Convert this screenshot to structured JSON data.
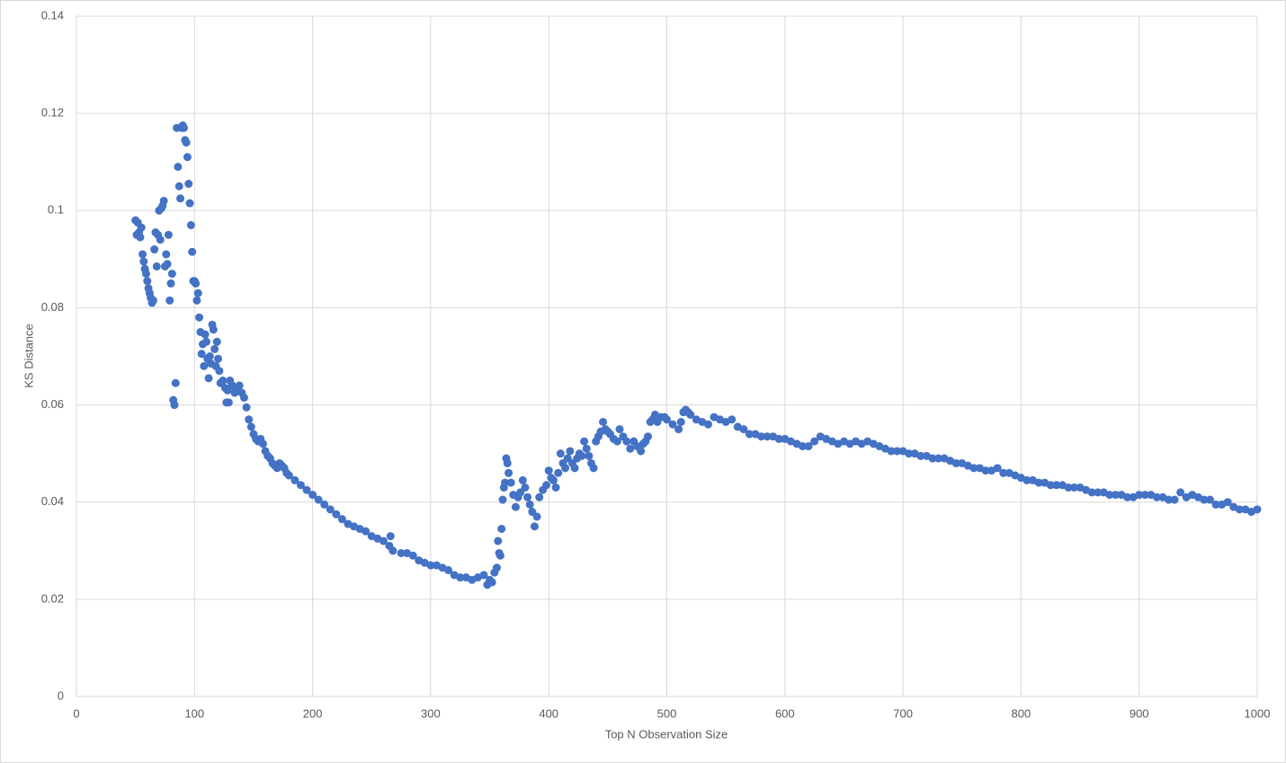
{
  "chart_data": {
    "type": "scatter",
    "x_label": "Top N Observation Size",
    "y_label": "KS Distance",
    "xlim": [
      0,
      1000
    ],
    "ylim": [
      0,
      0.14
    ],
    "xticks": [
      0,
      100,
      200,
      300,
      400,
      500,
      600,
      700,
      800,
      900,
      1000
    ],
    "yticks": [
      0,
      0.02,
      0.04,
      0.06,
      0.08,
      0.1,
      0.12,
      0.14
    ],
    "grid": true,
    "color": "#4472c4",
    "x": [
      50,
      51,
      52,
      53,
      54,
      55,
      56,
      57,
      58,
      59,
      60,
      61,
      62,
      63,
      64,
      65,
      66,
      67,
      68,
      69,
      70,
      71,
      72,
      73,
      74,
      75,
      76,
      77,
      78,
      79,
      80,
      81,
      82,
      83,
      84,
      85,
      86,
      87,
      88,
      89,
      90,
      91,
      92,
      93,
      94,
      95,
      96,
      97,
      98,
      99,
      100,
      101,
      102,
      103,
      104,
      105,
      106,
      107,
      108,
      109,
      110,
      111,
      112,
      113,
      114,
      115,
      116,
      117,
      118,
      119,
      120,
      121,
      122,
      124,
      126,
      127,
      128,
      129,
      130,
      132,
      134,
      136,
      138,
      140,
      142,
      144,
      146,
      148,
      150,
      152,
      154,
      156,
      158,
      160,
      162,
      164,
      166,
      168,
      170,
      172,
      174,
      176,
      178,
      180,
      185,
      190,
      195,
      200,
      205,
      210,
      215,
      220,
      225,
      230,
      235,
      240,
      245,
      250,
      255,
      260,
      265,
      266,
      268,
      275,
      280,
      285,
      290,
      295,
      300,
      305,
      310,
      315,
      320,
      325,
      330,
      335,
      340,
      345,
      348,
      350,
      352,
      354,
      356,
      357,
      358,
      359,
      360,
      361,
      362,
      363,
      364,
      365,
      366,
      368,
      370,
      372,
      374,
      376,
      378,
      380,
      382,
      384,
      386,
      388,
      390,
      392,
      395,
      398,
      400,
      402,
      404,
      406,
      408,
      410,
      412,
      414,
      416,
      418,
      420,
      422,
      424,
      426,
      428,
      430,
      432,
      434,
      436,
      438,
      440,
      442,
      444,
      446,
      448,
      450,
      452,
      455,
      458,
      460,
      463,
      466,
      469,
      472,
      475,
      478,
      480,
      482,
      484,
      486,
      488,
      490,
      492,
      495,
      498,
      500,
      505,
      510,
      512,
      514,
      516,
      518,
      520,
      525,
      530,
      535,
      540,
      545,
      550,
      555,
      560,
      565,
      570,
      575,
      580,
      585,
      590,
      595,
      600,
      605,
      610,
      615,
      620,
      625,
      630,
      635,
      640,
      645,
      650,
      655,
      660,
      665,
      670,
      675,
      680,
      685,
      690,
      695,
      700,
      705,
      710,
      715,
      720,
      725,
      730,
      735,
      740,
      745,
      750,
      755,
      760,
      765,
      770,
      775,
      780,
      785,
      790,
      795,
      800,
      805,
      810,
      815,
      820,
      825,
      830,
      835,
      840,
      845,
      850,
      855,
      860,
      865,
      870,
      875,
      880,
      885,
      890,
      895,
      900,
      905,
      910,
      915,
      920,
      925,
      930,
      935,
      940,
      945,
      950,
      955,
      960,
      965,
      970,
      975,
      980,
      985,
      990,
      995,
      1000
    ],
    "values": [
      0.098,
      0.095,
      0.0975,
      0.0955,
      0.0945,
      0.0965,
      0.091,
      0.0895,
      0.088,
      0.087,
      0.0855,
      0.084,
      0.083,
      0.082,
      0.081,
      0.0815,
      0.092,
      0.0955,
      0.0885,
      0.095,
      0.1,
      0.094,
      0.1005,
      0.101,
      0.102,
      0.0885,
      0.091,
      0.089,
      0.095,
      0.0815,
      0.085,
      0.087,
      0.061,
      0.06,
      0.0645,
      0.117,
      0.109,
      0.105,
      0.1025,
      0.117,
      0.1175,
      0.117,
      0.1145,
      0.114,
      0.111,
      0.1055,
      0.1015,
      0.097,
      0.0915,
      0.0855,
      0.0855,
      0.085,
      0.0815,
      0.083,
      0.078,
      0.075,
      0.0705,
      0.0725,
      0.068,
      0.0745,
      0.073,
      0.0695,
      0.0655,
      0.07,
      0.0685,
      0.0765,
      0.0755,
      0.0715,
      0.068,
      0.073,
      0.0695,
      0.067,
      0.0645,
      0.065,
      0.0635,
      0.0605,
      0.063,
      0.0605,
      0.065,
      0.064,
      0.0625,
      0.0635,
      0.064,
      0.0625,
      0.0615,
      0.0595,
      0.057,
      0.0555,
      0.054,
      0.053,
      0.0525,
      0.053,
      0.052,
      0.0505,
      0.0495,
      0.049,
      0.048,
      0.0475,
      0.047,
      0.048,
      0.0475,
      0.047,
      0.046,
      0.0455,
      0.0445,
      0.0435,
      0.0425,
      0.0415,
      0.0405,
      0.0395,
      0.0385,
      0.0375,
      0.0365,
      0.0355,
      0.035,
      0.0345,
      0.034,
      0.033,
      0.0325,
      0.032,
      0.031,
      0.033,
      0.03,
      0.0295,
      0.0295,
      0.029,
      0.028,
      0.0275,
      0.027,
      0.027,
      0.0265,
      0.026,
      0.025,
      0.0245,
      0.0245,
      0.024,
      0.0245,
      0.025,
      0.023,
      0.024,
      0.0235,
      0.0255,
      0.0265,
      0.032,
      0.0295,
      0.029,
      0.0345,
      0.0405,
      0.043,
      0.044,
      0.049,
      0.048,
      0.046,
      0.044,
      0.0415,
      0.039,
      0.041,
      0.042,
      0.0445,
      0.043,
      0.041,
      0.0395,
      0.038,
      0.035,
      0.037,
      0.041,
      0.0425,
      0.0435,
      0.0465,
      0.045,
      0.0445,
      0.043,
      0.046,
      0.05,
      0.048,
      0.047,
      0.049,
      0.0505,
      0.048,
      0.047,
      0.049,
      0.05,
      0.0495,
      0.0525,
      0.051,
      0.0495,
      0.048,
      0.047,
      0.0525,
      0.0535,
      0.0545,
      0.0565,
      0.055,
      0.0545,
      0.054,
      0.053,
      0.0525,
      0.055,
      0.0535,
      0.0525,
      0.051,
      0.0525,
      0.0515,
      0.0505,
      0.052,
      0.0525,
      0.0535,
      0.0565,
      0.057,
      0.058,
      0.0565,
      0.0575,
      0.0575,
      0.057,
      0.056,
      0.055,
      0.0565,
      0.0585,
      0.059,
      0.0585,
      0.058,
      0.057,
      0.0565,
      0.056,
      0.0575,
      0.057,
      0.0565,
      0.057,
      0.0555,
      0.055,
      0.054,
      0.054,
      0.0535,
      0.0535,
      0.0535,
      0.053,
      0.053,
      0.0525,
      0.052,
      0.0515,
      0.0515,
      0.0525,
      0.0535,
      0.053,
      0.0525,
      0.052,
      0.0525,
      0.052,
      0.0525,
      0.052,
      0.0525,
      0.052,
      0.0515,
      0.051,
      0.0505,
      0.0505,
      0.0505,
      0.05,
      0.05,
      0.0495,
      0.0495,
      0.049,
      0.049,
      0.049,
      0.0485,
      0.048,
      0.048,
      0.0475,
      0.047,
      0.047,
      0.0465,
      0.0465,
      0.047,
      0.046,
      0.046,
      0.0455,
      0.045,
      0.0445,
      0.0445,
      0.044,
      0.044,
      0.0435,
      0.0435,
      0.0435,
      0.043,
      0.043,
      0.043,
      0.0425,
      0.042,
      0.042,
      0.042,
      0.0415,
      0.0415,
      0.0415,
      0.041,
      0.041,
      0.0415,
      0.0415,
      0.0415,
      0.041,
      0.041,
      0.0405,
      0.0405,
      0.042,
      0.041,
      0.0415,
      0.041,
      0.0405,
      0.0405,
      0.0395,
      0.0395,
      0.04,
      0.039,
      0.0385,
      0.0385,
      0.038,
      0.0385
    ]
  }
}
